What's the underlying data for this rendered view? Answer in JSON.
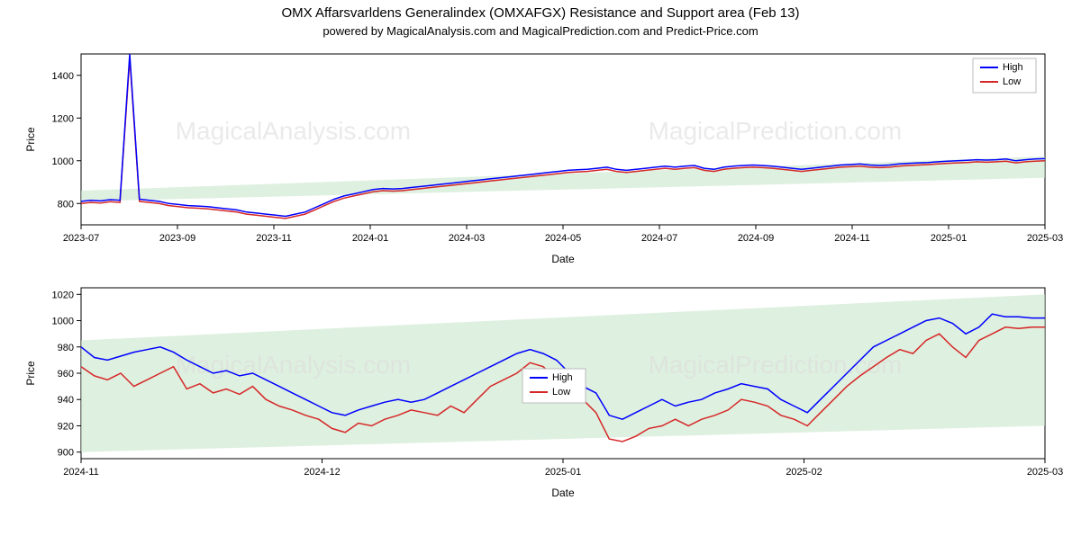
{
  "title": "OMX Affarsvarldens Generalindex (OMXAFGX) Resistance and Support area (Feb 13)",
  "subtitle": "powered by MagicalAnalysis.com and MagicalPrediction.com and Predict-Price.com",
  "watermarks": {
    "left": "MagicalAnalysis.com",
    "right": "MagicalPrediction.com"
  },
  "colors": {
    "high": "#0000ff",
    "low": "#d62728",
    "band": "#c8e6c9",
    "band_opacity": 0.6,
    "grid": "#cccccc",
    "axis": "#000000",
    "background": "#ffffff"
  },
  "legend": {
    "items": [
      {
        "label": "High",
        "color": "#0000ff"
      },
      {
        "label": "Low",
        "color": "#d62728"
      }
    ]
  },
  "top_chart": {
    "type": "line",
    "ylabel": "Price",
    "xlabel": "Date",
    "ylim": [
      700,
      1500
    ],
    "yticks": [
      800,
      1000,
      1200,
      1400
    ],
    "xticks": [
      "2023-07",
      "2023-09",
      "2023-11",
      "2024-01",
      "2024-03",
      "2024-05",
      "2024-07",
      "2024-09",
      "2024-11",
      "2025-01",
      "2025-03"
    ],
    "band": {
      "start": 820,
      "end_low": 920,
      "end_high": 1020
    },
    "spike_x": 0.08,
    "series": {
      "high": [
        810,
        815,
        812,
        818,
        815,
        1500,
        820,
        815,
        810,
        800,
        795,
        790,
        788,
        785,
        780,
        775,
        770,
        760,
        755,
        750,
        745,
        740,
        750,
        760,
        780,
        800,
        820,
        835,
        845,
        855,
        865,
        870,
        868,
        870,
        875,
        880,
        885,
        890,
        895,
        900,
        905,
        910,
        915,
        920,
        925,
        930,
        935,
        940,
        945,
        950,
        955,
        958,
        960,
        965,
        970,
        960,
        955,
        960,
        965,
        970,
        975,
        970,
        975,
        978,
        965,
        960,
        970,
        975,
        978,
        980,
        978,
        975,
        970,
        965,
        960,
        965,
        970,
        975,
        980,
        982,
        985,
        980,
        978,
        980,
        985,
        988,
        990,
        992,
        995,
        998,
        1000,
        1002,
        1005,
        1003,
        1005,
        1008,
        1000,
        1005,
        1008,
        1010
      ],
      "low": [
        800,
        805,
        802,
        808,
        805,
        1480,
        810,
        805,
        800,
        790,
        785,
        780,
        778,
        775,
        770,
        765,
        760,
        750,
        745,
        740,
        735,
        730,
        740,
        750,
        770,
        790,
        810,
        825,
        835,
        845,
        855,
        860,
        858,
        860,
        865,
        870,
        875,
        880,
        885,
        890,
        895,
        900,
        905,
        910,
        915,
        920,
        925,
        930,
        935,
        940,
        945,
        948,
        950,
        955,
        960,
        950,
        945,
        950,
        955,
        960,
        965,
        960,
        965,
        968,
        955,
        950,
        960,
        965,
        968,
        970,
        968,
        965,
        960,
        955,
        950,
        955,
        960,
        965,
        970,
        972,
        975,
        970,
        968,
        970,
        975,
        978,
        980,
        982,
        985,
        988,
        990,
        992,
        995,
        993,
        995,
        998,
        990,
        995,
        998,
        1000
      ]
    }
  },
  "bottom_chart": {
    "type": "line",
    "ylabel": "Price",
    "xlabel": "Date",
    "ylim": [
      895,
      1025
    ],
    "yticks": [
      900,
      920,
      940,
      960,
      980,
      1000,
      1020
    ],
    "xticks": [
      "2024-11",
      "2024-12",
      "2025-01",
      "2025-02",
      "2025-03"
    ],
    "band": {
      "start_low": 900,
      "start_high": 985,
      "end_low": 920,
      "end_high": 1020
    },
    "series": {
      "high": [
        980,
        972,
        970,
        973,
        976,
        978,
        980,
        976,
        970,
        965,
        960,
        962,
        958,
        960,
        955,
        950,
        945,
        940,
        935,
        930,
        928,
        932,
        935,
        938,
        940,
        938,
        940,
        945,
        950,
        955,
        960,
        965,
        970,
        975,
        978,
        975,
        970,
        960,
        950,
        945,
        928,
        925,
        930,
        935,
        940,
        935,
        938,
        940,
        945,
        948,
        952,
        950,
        948,
        940,
        935,
        930,
        940,
        950,
        960,
        970,
        980,
        985,
        990,
        995,
        1000,
        1002,
        998,
        990,
        995,
        1005,
        1003,
        1003,
        1002,
        1002
      ],
      "low": [
        965,
        958,
        955,
        960,
        950,
        955,
        960,
        965,
        948,
        952,
        945,
        948,
        944,
        950,
        940,
        935,
        932,
        928,
        925,
        918,
        915,
        922,
        920,
        925,
        928,
        932,
        930,
        928,
        935,
        930,
        940,
        950,
        955,
        960,
        968,
        965,
        955,
        948,
        940,
        930,
        910,
        908,
        912,
        918,
        920,
        925,
        920,
        925,
        928,
        932,
        940,
        938,
        935,
        928,
        925,
        920,
        930,
        940,
        950,
        958,
        965,
        972,
        978,
        975,
        985,
        990,
        980,
        972,
        985,
        990,
        995,
        994,
        995,
        995
      ]
    }
  }
}
